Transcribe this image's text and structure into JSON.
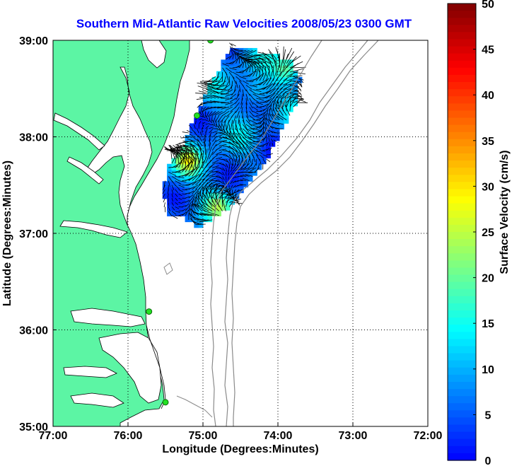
{
  "title": "Southern Mid-Atlantic Raw Velocities 2008/05/23 0300 GMT",
  "map": {
    "xlabel": "Longitude (Degrees:Minutes)",
    "ylabel": "Latitude (Degrees:Minutes)",
    "lon_ticks": [
      "77:00",
      "76:00",
      "75:00",
      "74:00",
      "73:00",
      "72:00"
    ],
    "lat_ticks": [
      "39:00",
      "38:00",
      "37:00",
      "36:00",
      "35:00"
    ],
    "lon_range": [
      -77,
      -72
    ],
    "lat_range": [
      35,
      39
    ],
    "land_color": "#5cf5a4",
    "water_color": "#ffffff",
    "grid": true,
    "stations": [
      {
        "lon": -74.9,
        "lat": 39.0
      },
      {
        "lon": -75.08,
        "lat": 38.22
      },
      {
        "lon": -75.72,
        "lat": 36.19
      },
      {
        "lon": -75.5,
        "lat": 35.25
      }
    ]
  },
  "colorbar": {
    "label": "Surface Velocity (cm/s)",
    "ticks": [
      "0",
      "5",
      "10",
      "15",
      "20",
      "25",
      "30",
      "35",
      "40",
      "45",
      "50"
    ],
    "range": [
      0,
      50
    ]
  },
  "chart_data": {
    "type": "vector-field",
    "description_units": "cm/s",
    "region": {
      "lon": [
        -75.5,
        -73.5
      ],
      "lat": [
        37.05,
        38.95
      ]
    },
    "regions_high_speed": [
      {
        "lon": -73.85,
        "lat": 38.7,
        "speed": 22
      },
      {
        "lon": -74.3,
        "lat": 38.45,
        "speed": 18
      },
      {
        "lon": -75.2,
        "lat": 37.75,
        "speed": 24
      },
      {
        "lon": -74.8,
        "lat": 37.3,
        "speed": 21
      }
    ]
  }
}
